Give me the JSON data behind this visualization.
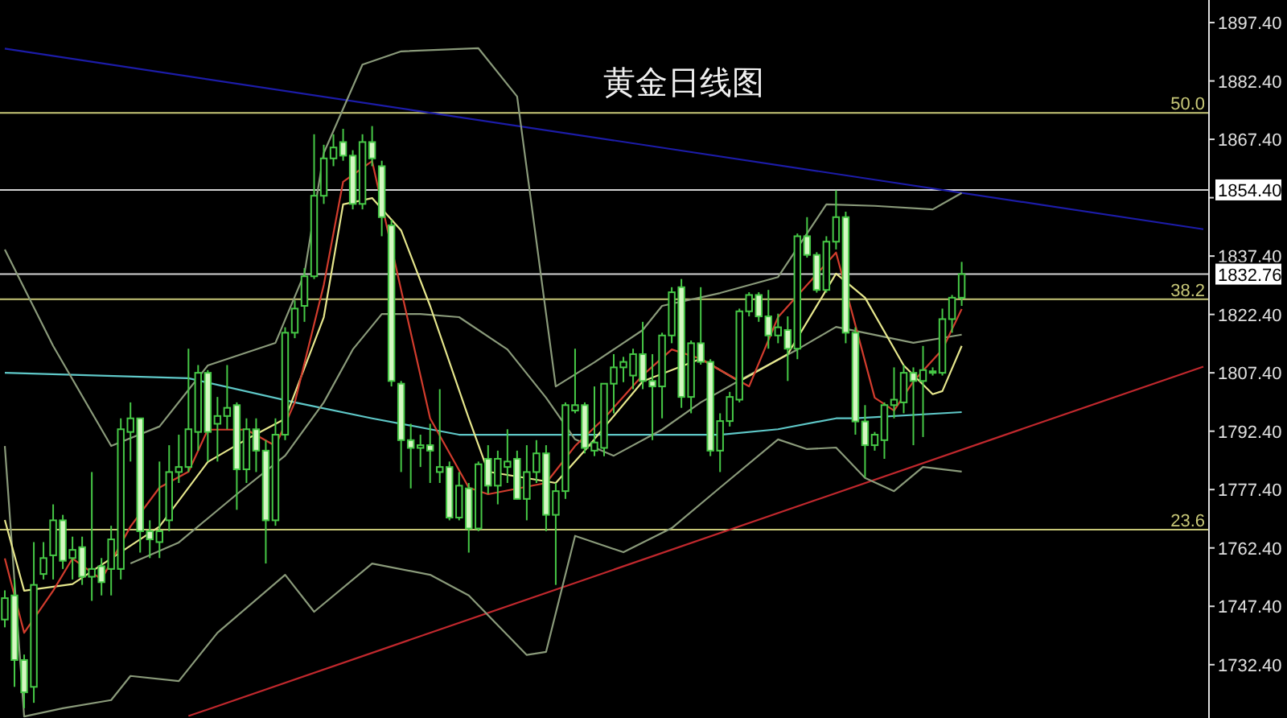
{
  "chart_data": {
    "type": "candlestick",
    "title": "黄金日线图",
    "color": "#46c846",
    "categories": [
      null,
      null,
      null,
      null,
      null,
      null,
      null,
      null,
      null,
      null,
      null,
      null,
      null,
      null,
      null,
      null,
      null,
      null,
      null,
      null,
      null,
      null,
      null,
      null,
      null,
      null,
      null,
      null,
      null,
      null,
      null,
      null,
      null,
      null,
      null,
      null,
      null,
      null,
      null,
      null,
      null,
      null,
      null,
      null,
      null,
      null,
      null,
      null,
      null,
      null,
      null,
      null,
      null,
      null,
      null,
      null,
      null,
      null,
      null,
      null,
      null,
      null,
      null,
      null,
      null,
      null,
      null,
      null,
      null,
      null,
      null,
      null,
      null,
      null,
      null,
      null,
      null,
      null,
      null,
      null,
      null,
      null,
      null,
      null,
      null,
      null,
      null,
      null,
      null,
      null,
      null,
      null,
      null,
      null,
      null,
      null,
      null,
      null,
      null,
      null,
      null,
      null,
      null,
      null,
      null,
      null,
      null,
      null,
      null,
      null,
      null,
      null,
      null,
      null,
      null,
      null,
      null,
      null,
      null,
      null,
      null,
      null,
      null,
      null,
      null
    ],
    "annotations": [
      {
        "text": "50.0",
        "y": 1874.2
      },
      {
        "text": "38.2",
        "y": 1826.3
      },
      {
        "text": "23.6",
        "y": 1767.1
      }
    ],
    "ohlc": [
      [
        1744.0,
        1751.5,
        1742.0,
        1749.5
      ],
      [
        1750.2,
        1754.3,
        1726.7,
        1733.6
      ],
      [
        1733.6,
        1735.0,
        1721.2,
        1725.3
      ],
      [
        1726.7,
        1763.9,
        1722.6,
        1752.9
      ],
      [
        1755.7,
        1763.9,
        1754.3,
        1759.8
      ],
      [
        1760.5,
        1773.6,
        1754.3,
        1769.5
      ],
      [
        1769.5,
        1770.9,
        1757.0,
        1759.1
      ],
      [
        1759.8,
        1765.3,
        1754.3,
        1761.9
      ],
      [
        1762.6,
        1765.3,
        1752.9,
        1755.0
      ],
      [
        1755.0,
        1781.9,
        1748.8,
        1757.0
      ],
      [
        1757.7,
        1759.8,
        1750.2,
        1753.6
      ],
      [
        1757.0,
        1768.1,
        1750.2,
        1764.6
      ],
      [
        1757.0,
        1795.7,
        1754.3,
        1792.9
      ],
      [
        1792.2,
        1799.8,
        1784.6,
        1795.7
      ],
      [
        1795.7,
        1795.7,
        1761.2,
        1766.7
      ],
      [
        1766.7,
        1769.5,
        1759.8,
        1764.6
      ],
      [
        1763.9,
        1784.6,
        1759.8,
        1766.7
      ],
      [
        1769.5,
        1788.8,
        1766.7,
        1781.9
      ],
      [
        1781.9,
        1791.5,
        1779.1,
        1783.2
      ],
      [
        1783.2,
        1813.6,
        1781.9,
        1792.9
      ],
      [
        1792.2,
        1809.4,
        1787.4,
        1807.4
      ],
      [
        1807.4,
        1808.1,
        1784.6,
        1792.2
      ],
      [
        1794.3,
        1801.2,
        1784.6,
        1796.3
      ],
      [
        1796.3,
        1809.4,
        1792.9,
        1798.4
      ],
      [
        1799.1,
        1799.8,
        1772.2,
        1782.6
      ],
      [
        1782.6,
        1795.7,
        1779.1,
        1792.9
      ],
      [
        1792.9,
        1795.7,
        1781.9,
        1787.4
      ],
      [
        1787.4,
        1790.1,
        1758.4,
        1769.5
      ],
      [
        1769.5,
        1795.7,
        1768.1,
        1791.5
      ],
      [
        1791.5,
        1819.1,
        1790.1,
        1817.7
      ],
      [
        1817.7,
        1826.0,
        1816.3,
        1823.9
      ],
      [
        1824.6,
        1834.3,
        1820.5,
        1832.2
      ],
      [
        1832.2,
        1868.7,
        1831.5,
        1852.9
      ],
      [
        1852.9,
        1866.0,
        1850.8,
        1862.5
      ],
      [
        1862.5,
        1868.7,
        1860.5,
        1865.3
      ],
      [
        1866.7,
        1870.1,
        1861.9,
        1863.2
      ],
      [
        1863.2,
        1864.6,
        1849.4,
        1850.8
      ],
      [
        1850.8,
        1868.7,
        1849.4,
        1866.7
      ],
      [
        1866.7,
        1870.8,
        1860.5,
        1862.5
      ],
      [
        1860.5,
        1861.9,
        1842.5,
        1847.4
      ],
      [
        1845.3,
        1846.7,
        1803.9,
        1805.3
      ],
      [
        1804.6,
        1805.3,
        1781.9,
        1790.1
      ],
      [
        1790.1,
        1794.3,
        1777.7,
        1788.1
      ],
      [
        1788.1,
        1791.5,
        1783.2,
        1788.8
      ],
      [
        1788.8,
        1794.3,
        1779.1,
        1787.4
      ],
      [
        1781.9,
        1803.2,
        1779.1,
        1783.2
      ],
      [
        1783.2,
        1784.6,
        1769.5,
        1770.2
      ],
      [
        1770.2,
        1781.9,
        1769.5,
        1778.4
      ],
      [
        1777.7,
        1779.1,
        1761.2,
        1767.4
      ],
      [
        1767.4,
        1784.6,
        1766.7,
        1783.9
      ],
      [
        1785.3,
        1788.8,
        1776.3,
        1778.4
      ],
      [
        1778.4,
        1787.4,
        1773.6,
        1785.3
      ],
      [
        1783.2,
        1792.9,
        1779.1,
        1784.6
      ],
      [
        1785.3,
        1787.4,
        1774.9,
        1775.0
      ],
      [
        1775.0,
        1788.8,
        1769.5,
        1781.9
      ],
      [
        1781.9,
        1790.1,
        1779.1,
        1786.7
      ],
      [
        1786.7,
        1788.8,
        1766.7,
        1770.9
      ],
      [
        1770.9,
        1779.1,
        1752.9,
        1777.0
      ],
      [
        1777.0,
        1799.8,
        1775.0,
        1799.1
      ],
      [
        1797.7,
        1813.6,
        1797.0,
        1799.1
      ],
      [
        1799.1,
        1799.8,
        1786.7,
        1788.1
      ],
      [
        1787.4,
        1803.9,
        1786.0,
        1789.5
      ],
      [
        1788.1,
        1804.6,
        1786.0,
        1804.6
      ],
      [
        1804.6,
        1812.2,
        1797.0,
        1808.8
      ],
      [
        1808.8,
        1811.5,
        1805.0,
        1810.2
      ],
      [
        1806.7,
        1813.6,
        1803.2,
        1812.2
      ],
      [
        1812.2,
        1820.5,
        1803.2,
        1805.3
      ],
      [
        1805.3,
        1812.2,
        1790.1,
        1803.9
      ],
      [
        1803.9,
        1817.7,
        1795.7,
        1817.0
      ],
      [
        1817.0,
        1829.4,
        1815.0,
        1828.1
      ],
      [
        1829.4,
        1831.5,
        1798.4,
        1801.2
      ],
      [
        1801.2,
        1815.7,
        1797.0,
        1815.0
      ],
      [
        1815.0,
        1829.4,
        1809.5,
        1810.2
      ],
      [
        1810.2,
        1810.9,
        1786.0,
        1787.4
      ],
      [
        1787.4,
        1797.0,
        1781.9,
        1795.0
      ],
      [
        1795.0,
        1802.5,
        1793.6,
        1801.2
      ],
      [
        1800.5,
        1823.9,
        1799.8,
        1823.2
      ],
      [
        1823.2,
        1828.1,
        1821.9,
        1827.4
      ],
      [
        1827.4,
        1828.1,
        1820.5,
        1821.9
      ],
      [
        1821.9,
        1828.7,
        1813.6,
        1817.0
      ],
      [
        1817.0,
        1822.6,
        1815.0,
        1819.1
      ],
      [
        1818.4,
        1821.9,
        1805.3,
        1813.6
      ],
      [
        1813.6,
        1843.2,
        1810.9,
        1842.5
      ],
      [
        1842.5,
        1847.4,
        1837.0,
        1837.7
      ],
      [
        1837.7,
        1838.4,
        1828.0,
        1828.7
      ],
      [
        1828.7,
        1842.5,
        1828.0,
        1841.1
      ],
      [
        1841.1,
        1854.3,
        1839.1,
        1847.4
      ],
      [
        1847.4,
        1848.8,
        1815.0,
        1817.7
      ],
      [
        1817.7,
        1819.1,
        1791.5,
        1794.9
      ],
      [
        1794.9,
        1799.1,
        1780.5,
        1788.8
      ],
      [
        1788.8,
        1792.2,
        1787.4,
        1791.5
      ],
      [
        1790.1,
        1799.8,
        1785.3,
        1799.1
      ],
      [
        1799.1,
        1808.8,
        1795.7,
        1800.5
      ],
      [
        1799.8,
        1809.4,
        1797.0,
        1807.4
      ],
      [
        1807.4,
        1808.8,
        1788.8,
        1805.3
      ],
      [
        1805.3,
        1814.3,
        1790.9,
        1808.1
      ],
      [
        1807.4,
        1808.8,
        1806.7,
        1807.8
      ],
      [
        1807.4,
        1823.9,
        1806.7,
        1821.2
      ],
      [
        1821.2,
        1827.4,
        1817.7,
        1826.7
      ],
      [
        1826.7,
        1835.9,
        1824.6,
        1832.76
      ],
      null,
      null,
      null,
      null,
      null,
      null,
      null,
      null,
      null,
      null,
      null,
      null,
      null,
      null,
      null,
      null,
      null,
      null,
      null,
      null,
      null,
      null,
      null,
      null,
      null
    ],
    "series": [
      {
        "type": "line",
        "color": "#1c1ca8",
        "values": [
          1890.7,
          null,
          null,
          null,
          null,
          null,
          null,
          null,
          null,
          null,
          null,
          null,
          null,
          null,
          null,
          null,
          null,
          null,
          null,
          null,
          null,
          null,
          null,
          null,
          null,
          null,
          null,
          null,
          null,
          null,
          null,
          null,
          null,
          null,
          null,
          null,
          null,
          null,
          null,
          null,
          null,
          null,
          null,
          null,
          null,
          null,
          null,
          null,
          null,
          null,
          null,
          null,
          null,
          null,
          null,
          null,
          null,
          null,
          null,
          null,
          null,
          null,
          null,
          null,
          null,
          null,
          null,
          null,
          null,
          null,
          null,
          null,
          null,
          null,
          null,
          null,
          null,
          null,
          null,
          null,
          null,
          null,
          null,
          null,
          null,
          null,
          null,
          null,
          null,
          null,
          null,
          null,
          null,
          null,
          null,
          null,
          null,
          null,
          null,
          null,
          null,
          null,
          null,
          null,
          null,
          null,
          null,
          null,
          null,
          null,
          null,
          null,
          null,
          null,
          null,
          null,
          null,
          null,
          null,
          null,
          null,
          null,
          null,
          null,
          1844.3
        ]
      },
      {
        "type": "line",
        "color": "#c0282d",
        "values": [
          null,
          null,
          null,
          null,
          null,
          null,
          null,
          null,
          null,
          null,
          null,
          null,
          null,
          null,
          null,
          null,
          null,
          null,
          null,
          1719.2,
          null,
          null,
          null,
          null,
          null,
          null,
          null,
          null,
          null,
          null,
          null,
          null,
          null,
          null,
          null,
          null,
          null,
          null,
          null,
          null,
          null,
          null,
          null,
          null,
          null,
          null,
          null,
          null,
          null,
          null,
          null,
          null,
          null,
          null,
          null,
          null,
          null,
          null,
          null,
          null,
          null,
          null,
          null,
          null,
          null,
          null,
          null,
          null,
          null,
          null,
          null,
          null,
          null,
          null,
          null,
          null,
          null,
          null,
          null,
          null,
          null,
          null,
          null,
          null,
          null,
          null,
          null,
          null,
          null,
          null,
          null,
          null,
          null,
          null,
          null,
          null,
          null,
          null,
          null,
          null,
          null,
          null,
          null,
          null,
          null,
          null,
          null,
          null,
          null,
          null,
          null,
          null,
          null,
          null,
          null,
          null,
          null,
          null,
          null,
          null,
          null,
          null,
          null,
          null,
          1809.0
        ]
      },
      {
        "type": "line",
        "color": "#5fc8c8",
        "values": [
          1807.4,
          null,
          null,
          null,
          null,
          null,
          null,
          null,
          null,
          null,
          null,
          null,
          null,
          null,
          null,
          null,
          null,
          null,
          null,
          1806.0,
          null,
          null,
          null,
          null,
          null,
          null,
          null,
          null,
          null,
          null,
          1799.8,
          null,
          null,
          null,
          null,
          null,
          null,
          null,
          1795.7,
          null,
          null,
          null,
          null,
          null,
          1792.9,
          null,
          null,
          1791.5,
          null,
          null,
          null,
          null,
          null,
          null,
          null,
          null,
          null,
          null,
          1791.5,
          null,
          null,
          null,
          null,
          null,
          null,
          null,
          null,
          null,
          null,
          null,
          null,
          null,
          null,
          null,
          1791.5,
          null,
          null,
          null,
          null,
          null,
          1792.9,
          null,
          null,
          null,
          null,
          null,
          1795.7,
          null,
          1795.7,
          null,
          null,
          null,
          null,
          null,
          null,
          null,
          null,
          null,
          null,
          1797.3,
          null,
          null,
          null,
          null,
          null,
          null,
          null,
          null,
          null,
          null,
          null,
          null,
          null,
          null,
          null,
          null,
          null,
          null,
          null,
          null,
          null,
          null,
          null,
          null,
          null
        ]
      },
      {
        "type": "line",
        "color": "#8a9a7a",
        "values": [
          1839.1,
          null,
          null,
          null,
          null,
          1814.3,
          null,
          null,
          null,
          null,
          null,
          1788.6,
          null,
          null,
          null,
          null,
          1793.6,
          null,
          null,
          null,
          null,
          1809.3,
          null,
          null,
          null,
          null,
          null,
          null,
          1815.1,
          null,
          null,
          1832.9,
          null,
          1863.9,
          null,
          null,
          null,
          1886.6,
          null,
          null,
          null,
          1890.0,
          null,
          null,
          null,
          null,
          null,
          null,
          null,
          1890.8,
          null,
          null,
          null,
          1878.4,
          null,
          null,
          null,
          1803.9,
          null,
          null,
          null,
          1810.1,
          null,
          null,
          null,
          null,
          1818.4,
          null,
          1824.6,
          null,
          null,
          null,
          null,
          null,
          1827.9,
          null,
          null,
          null,
          null,
          null,
          1832.0,
          null,
          null,
          null,
          null,
          1850.7,
          null,
          null,
          null,
          null,
          1850.3,
          null,
          null,
          null,
          null,
          null,
          1849.4,
          null,
          null,
          1853.6,
          null,
          null,
          null,
          null,
          null,
          null,
          null,
          null,
          null,
          null,
          null,
          null,
          null,
          null,
          null,
          null,
          null,
          null,
          null,
          null,
          null,
          null,
          null,
          null,
          null
        ]
      },
      {
        "type": "line",
        "color": "#8a9a7a",
        "values": [
          null,
          null,
          null,
          null,
          null,
          null,
          null,
          null,
          null,
          null,
          null,
          null,
          null,
          1758.4,
          null,
          null,
          null,
          null,
          1763.8,
          null,
          null,
          null,
          null,
          null,
          1776.2,
          null,
          null,
          null,
          null,
          1786.1,
          null,
          null,
          null,
          1799.8,
          null,
          null,
          1813.4,
          null,
          null,
          1822.5,
          null,
          null,
          null,
          1822.5,
          null,
          null,
          null,
          1821.7,
          null,
          null,
          null,
          null,
          1813.4,
          null,
          null,
          null,
          1801.0,
          null,
          null,
          1790.3,
          null,
          null,
          null,
          1786.1,
          null,
          null,
          null,
          null,
          1792.8,
          null,
          null,
          null,
          1799.8,
          null,
          null,
          null,
          null,
          1806.8,
          null,
          null,
          null,
          null,
          1813.4,
          null,
          null,
          null,
          1819.2,
          null,
          null,
          null,
          null,
          null,
          null,
          null,
          1815.1,
          null,
          null,
          null,
          null,
          1817.2,
          null,
          null,
          null,
          null,
          null,
          null,
          null,
          null,
          null,
          null,
          null,
          null,
          null,
          null,
          null,
          null,
          null,
          null,
          null,
          null,
          null,
          null,
          null,
          null,
          null
        ]
      },
      {
        "type": "line",
        "color": "#8a9a7a",
        "values": [
          1788.6,
          null,
          1719.1,
          null,
          null,
          null,
          1721.2,
          null,
          null,
          null,
          null,
          1723.3,
          null,
          1729.5,
          null,
          null,
          null,
          null,
          1728.2,
          null,
          null,
          null,
          1740.6,
          null,
          null,
          null,
          null,
          null,
          null,
          1755.5,
          null,
          null,
          1746.0,
          null,
          null,
          null,
          null,
          null,
          1758.4,
          null,
          null,
          null,
          null,
          null,
          1755.5,
          null,
          null,
          null,
          1750.2,
          null,
          null,
          null,
          null,
          null,
          1734.9,
          null,
          1735.7,
          null,
          null,
          1765.5,
          null,
          null,
          null,
          null,
          1761.3,
          null,
          null,
          null,
          null,
          1767.5,
          null,
          null,
          null,
          null,
          1777.9,
          null,
          null,
          null,
          null,
          null,
          1790.3,
          null,
          null,
          1787.8,
          null,
          null,
          1788.2,
          null,
          null,
          1780.4,
          null,
          null,
          1777.0,
          null,
          null,
          1783.2,
          null,
          null,
          null,
          1782.0,
          null,
          null,
          null,
          null,
          null,
          null,
          null,
          null,
          null,
          null,
          null,
          null,
          null,
          null,
          null,
          null,
          null,
          null,
          null,
          null,
          null,
          null,
          null,
          null,
          null
        ]
      },
      {
        "type": "line",
        "color": "#e6e68c",
        "values": [
          1769.6,
          null,
          1751.4,
          null,
          null,
          null,
          null,
          1753.1,
          null,
          null,
          null,
          null,
          null,
          null,
          null,
          null,
          1767.9,
          null,
          null,
          null,
          null,
          1784.5,
          null,
          null,
          null,
          1790.3,
          null,
          null,
          null,
          1795.6,
          null,
          null,
          null,
          1821.7,
          null,
          1850.7,
          null,
          null,
          1852.3,
          null,
          null,
          1844.0,
          null,
          null,
          1824.6,
          null,
          null,
          null,
          1795.7,
          null,
          1782.0,
          null,
          null,
          null,
          null,
          null,
          null,
          1779.1,
          null,
          null,
          1787.4,
          null,
          null,
          null,
          null,
          null,
          1805.2,
          null,
          null,
          null,
          null,
          null,
          1811.0,
          null,
          null,
          null,
          1805.2,
          null,
          null,
          null,
          null,
          1812.2,
          null,
          null,
          null,
          null,
          1832.9,
          null,
          null,
          1826.7,
          null,
          null,
          null,
          1809.3,
          null,
          null,
          1801.9,
          1802.7,
          null,
          1814.3,
          null,
          null,
          null,
          null,
          null,
          null,
          null,
          null,
          null,
          null,
          null,
          null,
          null,
          null,
          null,
          null,
          null,
          null,
          null,
          null,
          null,
          null,
          null,
          null,
          null
        ]
      },
      {
        "type": "line",
        "color": "#d23c2d",
        "values": [
          1759.7,
          null,
          1740.6,
          null,
          null,
          1751.4,
          null,
          1759.7,
          null,
          null,
          1754.3,
          null,
          null,
          1767.9,
          null,
          null,
          1777.9,
          null,
          null,
          1782.0,
          null,
          1792.8,
          null,
          null,
          null,
          1792.8,
          null,
          null,
          1788.6,
          null,
          1799.8,
          null,
          null,
          1830.0,
          null,
          1856.5,
          null,
          null,
          1861.8,
          null,
          null,
          1828.7,
          null,
          null,
          1795.7,
          null,
          null,
          null,
          1777.9,
          null,
          1776.2,
          null,
          null,
          null,
          null,
          null,
          1779.1,
          null,
          null,
          1788.6,
          null,
          null,
          1795.7,
          null,
          null,
          null,
          1806.8,
          null,
          null,
          1813.4,
          null,
          null,
          1811.0,
          null,
          1808.1,
          null,
          null,
          1803.9,
          null,
          null,
          1821.7,
          null,
          null,
          null,
          null,
          null,
          1838.3,
          null,
          null,
          null,
          1801.0,
          null,
          1797.7,
          null,
          1805.2,
          null,
          null,
          1813.4,
          null,
          1823.8,
          null,
          null,
          null,
          null,
          null,
          null,
          null,
          null,
          null,
          null,
          null,
          null,
          null,
          null,
          null,
          null,
          null,
          null,
          null,
          null,
          null,
          null,
          null,
          null,
          null
        ]
      }
    ],
    "ylim": [
      1718.7,
      1903.2
    ],
    "yticks": [
      {
        "value": 1897.4,
        "label": "1897.40"
      },
      {
        "value": 1882.4,
        "label": "1882.40"
      },
      {
        "value": 1867.4,
        "label": "1867.40"
      },
      {
        "value": 1852.4,
        "label": null
      },
      {
        "value": 1837.4,
        "label": "1837.40"
      },
      {
        "value": 1822.4,
        "label": "1822.40"
      },
      {
        "value": 1807.4,
        "label": "1807.40"
      },
      {
        "value": 1792.4,
        "label": "1792.40"
      },
      {
        "value": 1777.4,
        "label": "1777.40"
      },
      {
        "value": 1762.4,
        "label": "1762.40"
      },
      {
        "value": 1747.4,
        "label": "1747.40"
      },
      {
        "value": 1732.4,
        "label": "1732.40"
      }
    ],
    "ref_lines": [
      {
        "axis": "y",
        "value": 1874.2,
        "color": "#c8c878"
      },
      {
        "axis": "y",
        "value": 1826.3,
        "color": "#c8c878"
      },
      {
        "axis": "y",
        "value": 1767.1,
        "color": "#c8c878"
      },
      {
        "axis": "y",
        "value": 1854.4,
        "label": "1854.40",
        "color": "#d2d2d2"
      },
      {
        "axis": "y",
        "value": 1832.76,
        "label": "1832.76",
        "color": "#d2d2d2"
      }
    ],
    "tick_labels": "y",
    "grid": false
  }
}
